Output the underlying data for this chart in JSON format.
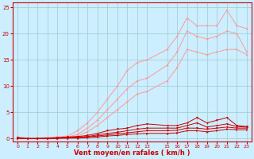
{
  "x": [
    0,
    1,
    2,
    3,
    4,
    5,
    6,
    7,
    8,
    9,
    10,
    11,
    12,
    13,
    15,
    16,
    17,
    18,
    19,
    20,
    21,
    22,
    23
  ],
  "line_light1": [
    0.3,
    0.1,
    0.1,
    0.2,
    0.3,
    0.5,
    1.5,
    3.0,
    5.0,
    7.5,
    10.0,
    13.0,
    14.5,
    15.0,
    17.0,
    19.5,
    23.0,
    21.5,
    21.5,
    21.5,
    24.5,
    21.5,
    21.0
  ],
  "line_light2": [
    0.2,
    0.1,
    0.1,
    0.1,
    0.2,
    0.3,
    0.8,
    2.0,
    3.5,
    5.5,
    7.5,
    9.5,
    11.0,
    11.5,
    14.0,
    16.5,
    20.5,
    19.5,
    19.0,
    19.5,
    20.5,
    20.0,
    16.5
  ],
  "line_light3": [
    0.1,
    0.0,
    0.0,
    0.0,
    0.1,
    0.2,
    0.5,
    1.3,
    2.5,
    4.0,
    5.5,
    7.0,
    8.5,
    9.0,
    11.0,
    13.5,
    17.0,
    16.5,
    16.0,
    16.5,
    17.0,
    17.0,
    16.0
  ],
  "line_dark1": [
    0.2,
    0.0,
    0.0,
    0.1,
    0.2,
    0.3,
    0.4,
    0.6,
    1.0,
    1.5,
    1.8,
    2.0,
    2.5,
    2.8,
    2.5,
    2.5,
    3.0,
    4.0,
    3.0,
    3.5,
    4.0,
    2.5,
    2.3
  ],
  "line_dark2": [
    0.1,
    0.0,
    0.0,
    0.1,
    0.1,
    0.2,
    0.3,
    0.4,
    0.7,
    1.0,
    1.2,
    1.5,
    1.8,
    2.0,
    2.0,
    2.0,
    2.5,
    3.0,
    2.2,
    2.5,
    2.8,
    2.3,
    2.2
  ],
  "line_dark3": [
    0.1,
    0.0,
    0.0,
    0.0,
    0.1,
    0.1,
    0.2,
    0.3,
    0.5,
    0.7,
    0.9,
    1.1,
    1.3,
    1.5,
    1.5,
    1.6,
    2.0,
    2.0,
    1.8,
    2.0,
    2.2,
    2.0,
    2.0
  ],
  "line_dark4": [
    0.05,
    0.0,
    0.0,
    0.0,
    0.05,
    0.1,
    0.1,
    0.2,
    0.3,
    0.5,
    0.6,
    0.8,
    0.9,
    1.0,
    1.0,
    1.1,
    1.5,
    1.5,
    1.3,
    1.5,
    1.8,
    1.7,
    1.7
  ],
  "color_dark": "#cc0000",
  "color_light": "#ff9999",
  "background": "#cceeff",
  "grid_color": "#99cccc",
  "xlabel": "Vent moyen/en rafales ( km/h )",
  "xtick_labels": [
    "0",
    "1",
    "2",
    "3",
    "4",
    "5",
    "6",
    "7",
    "8",
    "9",
    "10",
    "11",
    "12",
    "13",
    "15",
    "16",
    "17",
    "18",
    "19",
    "20",
    "21",
    "22",
    "23"
  ],
  "yticks": [
    0,
    5,
    10,
    15,
    20,
    25
  ],
  "ylim": [
    -0.5,
    26
  ],
  "xlim": [
    -0.5,
    23.5
  ]
}
